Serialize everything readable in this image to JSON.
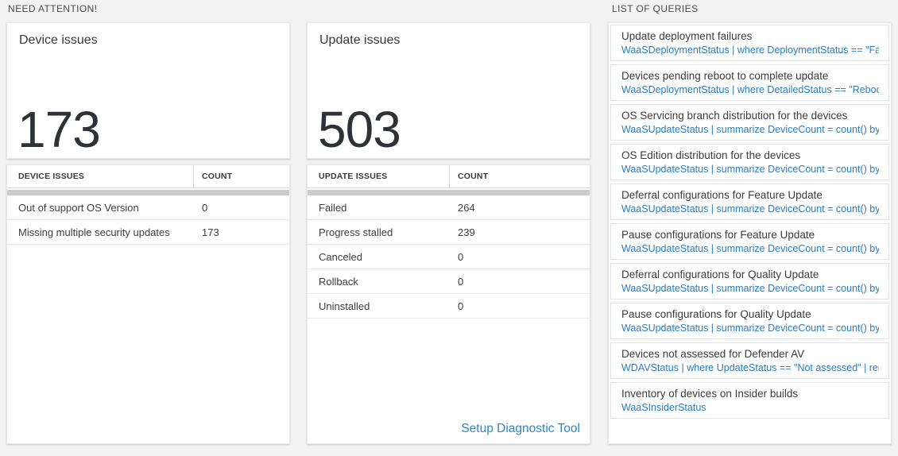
{
  "need_attention": {
    "label": "NEED ATTENTION!"
  },
  "list_of_queries": {
    "label": "LIST OF QUERIES"
  },
  "device_card": {
    "title": "Device issues",
    "count": "173"
  },
  "device_table": {
    "col_issue": "DEVICE ISSUES",
    "col_count": "COUNT",
    "rows": [
      {
        "label": "Out of support OS Version",
        "count": "0"
      },
      {
        "label": "Missing multiple security updates",
        "count": "173"
      }
    ]
  },
  "update_card": {
    "title": "Update issues",
    "count": "503"
  },
  "update_table": {
    "col_issue": "UPDATE ISSUES",
    "col_count": "COUNT",
    "rows": [
      {
        "label": "Failed",
        "count": "264"
      },
      {
        "label": "Progress stalled",
        "count": "239"
      },
      {
        "label": "Canceled",
        "count": "0"
      },
      {
        "label": "Rollback",
        "count": "0"
      },
      {
        "label": "Uninstalled",
        "count": "0"
      }
    ],
    "footer_link": "Setup Diagnostic Tool"
  },
  "queries": [
    {
      "title": "Update deployment failures",
      "query": "WaaSDeploymentStatus | where DeploymentStatus == \"Failed\" |..."
    },
    {
      "title": "Devices pending reboot to complete update",
      "query": "WaaSDeploymentStatus | where DetailedStatus == \"Reboot pend..."
    },
    {
      "title": "OS Servicing branch distribution for the devices",
      "query": "WaaSUpdateStatus | summarize DeviceCount = count() by OSSer..."
    },
    {
      "title": "OS Edition distribution for the devices",
      "query": "WaaSUpdateStatus | summarize DeviceCount = count() by OSEdit..."
    },
    {
      "title": "Deferral configurations for Feature Update",
      "query": "WaaSUpdateStatus | summarize DeviceCount = count() by Featur..."
    },
    {
      "title": "Pause configurations for Feature Update",
      "query": "WaaSUpdateStatus | summarize DeviceCount = count() by Featur..."
    },
    {
      "title": "Deferral configurations for Quality Update",
      "query": "WaaSUpdateStatus | summarize DeviceCount = count() by Qualit..."
    },
    {
      "title": "Pause configurations for Quality Update",
      "query": "WaaSUpdateStatus | summarize DeviceCount = count() by Qualit..."
    },
    {
      "title": "Devices not assessed for Defender AV",
      "query": "WDAVStatus | where UpdateStatus == \"Not assessed\" | render ta..."
    },
    {
      "title": "Inventory of devices on Insider builds",
      "query": "WaaSInsiderStatus"
    }
  ],
  "colors": {
    "page_bg": "#f2f2f2",
    "query_link_blue": "#2e7cbe",
    "setup_link_blue": "#2f86c9",
    "scrollbar_gray": "#cbcbcb"
  }
}
